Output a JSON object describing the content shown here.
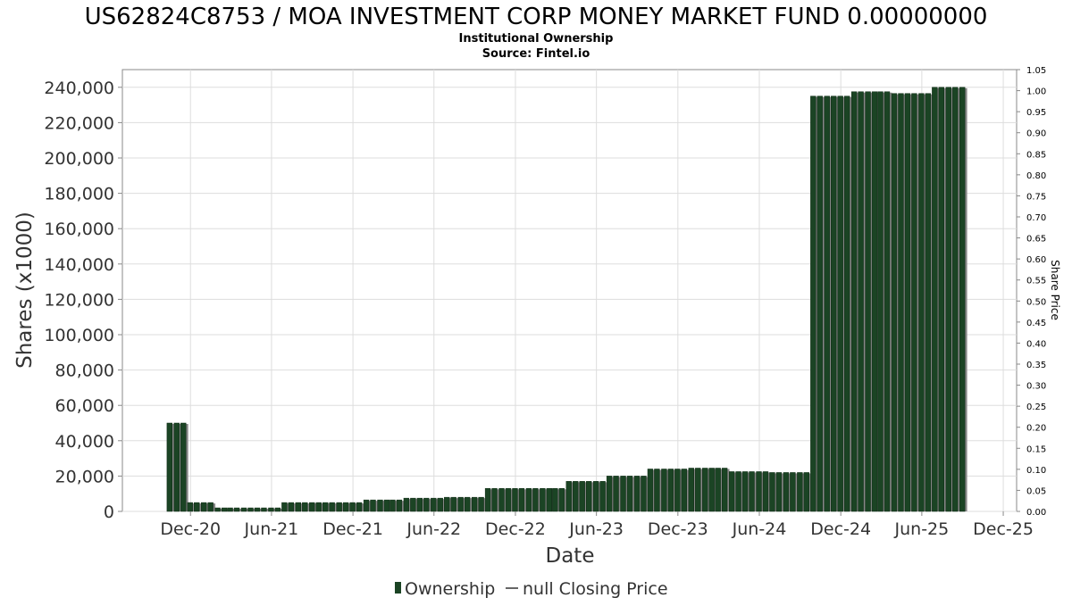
{
  "chart_data": {
    "type": "bar",
    "title": "US62824C8753 / MOA INVESTMENT CORP MONEY MARKET FUND 0.00000000",
    "subtitle": "Institutional Ownership",
    "source": "Source: Fintel.io",
    "xlabel": "Date",
    "ylabel": "Shares (x1000)",
    "ylabel_right": "Share Price",
    "ylim": [
      0,
      250000
    ],
    "ylim_right": [
      0,
      1.05
    ],
    "y_ticks": [
      "0",
      "20,000",
      "40,000",
      "60,000",
      "80,000",
      "100,000",
      "120,000",
      "140,000",
      "160,000",
      "180,000",
      "200,000",
      "220,000",
      "240,000"
    ],
    "y_ticks_right": [
      "0.00",
      "0.05",
      "0.10",
      "0.15",
      "0.20",
      "0.25",
      "0.30",
      "0.35",
      "0.40",
      "0.45",
      "0.50",
      "0.55",
      "0.60",
      "0.65",
      "0.70",
      "0.75",
      "0.80",
      "0.85",
      "0.90",
      "0.95",
      "1.00",
      "1.05"
    ],
    "x_ticks": [
      "Dec-20",
      "Jun-21",
      "Dec-21",
      "Jun-22",
      "Dec-22",
      "Jun-23",
      "Dec-23",
      "Jun-24",
      "Dec-24",
      "Jun-25",
      "Dec-25"
    ],
    "x_range": [
      "2020-07-01",
      "2025-12-31"
    ],
    "grid": true,
    "legend": [
      "Ownership",
      "null Closing Price"
    ],
    "legend_position": "bottom",
    "bar_color": "#1b4424",
    "series": [
      {
        "name": "Ownership",
        "x": [
          "2020-10-15",
          "2020-10-31",
          "2020-11-15",
          "2020-11-30",
          "2020-12-15",
          "2020-12-31",
          "2021-01-15",
          "2021-01-31",
          "2021-02-15",
          "2021-02-28",
          "2021-03-15",
          "2021-03-31",
          "2021-04-15",
          "2021-04-30",
          "2021-05-15",
          "2021-05-31",
          "2021-06-15",
          "2021-06-30",
          "2021-07-15",
          "2021-07-31",
          "2021-08-15",
          "2021-08-31",
          "2021-09-15",
          "2021-09-30",
          "2021-10-15",
          "2021-10-31",
          "2021-11-15",
          "2021-11-30",
          "2021-12-15",
          "2021-12-31",
          "2022-01-15",
          "2022-01-31",
          "2022-02-15",
          "2022-02-28",
          "2022-03-15",
          "2022-03-31",
          "2022-04-15",
          "2022-04-30",
          "2022-05-15",
          "2022-05-31",
          "2022-06-15",
          "2022-06-30",
          "2022-07-15",
          "2022-07-31",
          "2022-08-15",
          "2022-08-31",
          "2022-09-15",
          "2022-09-30",
          "2022-10-15",
          "2022-10-31",
          "2022-11-15",
          "2022-11-30",
          "2022-12-15",
          "2022-12-31",
          "2023-01-15",
          "2023-01-31",
          "2023-02-15",
          "2023-02-28",
          "2023-03-15",
          "2023-03-31",
          "2023-04-15",
          "2023-04-30",
          "2023-05-15",
          "2023-05-31",
          "2023-06-15",
          "2023-06-30",
          "2023-07-15",
          "2023-07-31",
          "2023-08-15",
          "2023-08-31",
          "2023-09-15",
          "2023-09-30",
          "2023-10-15",
          "2023-10-31",
          "2023-11-15",
          "2023-11-30",
          "2023-12-15",
          "2023-12-31",
          "2024-01-15",
          "2024-01-31",
          "2024-02-15",
          "2024-02-29",
          "2024-03-15",
          "2024-03-31",
          "2024-04-15",
          "2024-04-30",
          "2024-05-15",
          "2024-05-31",
          "2024-06-15",
          "2024-06-30",
          "2024-07-15",
          "2024-07-31",
          "2024-08-15",
          "2024-08-31",
          "2024-09-15",
          "2024-09-30",
          "2024-10-15",
          "2024-10-31",
          "2024-11-15",
          "2024-11-30",
          "2024-12-15",
          "2024-12-31",
          "2025-01-15",
          "2025-01-31",
          "2025-02-15",
          "2025-02-28",
          "2025-03-15",
          "2025-03-31",
          "2025-04-15",
          "2025-04-30",
          "2025-05-15",
          "2025-05-31",
          "2025-06-15",
          "2025-06-30",
          "2025-07-15",
          "2025-07-31",
          "2025-08-15",
          "2025-08-31"
        ],
        "values": [
          50000,
          50000,
          50000,
          5000,
          5000,
          5000,
          5000,
          2000,
          2000,
          2000,
          2000,
          2000,
          2000,
          2000,
          2000,
          2000,
          2000,
          5000,
          5000,
          5000,
          5000,
          5000,
          5000,
          5000,
          5000,
          5000,
          5000,
          5000,
          5000,
          6500,
          6500,
          6500,
          6500,
          6500,
          6500,
          7500,
          7500,
          7500,
          7500,
          7500,
          7500,
          8000,
          8000,
          8000,
          8000,
          8000,
          8000,
          13000,
          13000,
          13000,
          13000,
          13000,
          13000,
          13000,
          13000,
          13000,
          13000,
          13000,
          13000,
          17000,
          17000,
          17000,
          17000,
          17000,
          17000,
          20000,
          20000,
          20000,
          20000,
          20000,
          20000,
          24000,
          24000,
          24000,
          24000,
          24000,
          24000,
          24500,
          24500,
          24500,
          24500,
          24500,
          24500,
          22500,
          22500,
          22500,
          22500,
          22500,
          22500,
          22000,
          22000,
          22000,
          22000,
          22000,
          22000,
          235000,
          235000,
          235000,
          235000,
          235000,
          235000,
          237500,
          237500,
          237500,
          237500,
          237500,
          237500,
          236500,
          236500,
          236500,
          236500,
          236500,
          236500,
          240000,
          240000,
          240000,
          240000,
          240000
        ]
      }
    ]
  }
}
